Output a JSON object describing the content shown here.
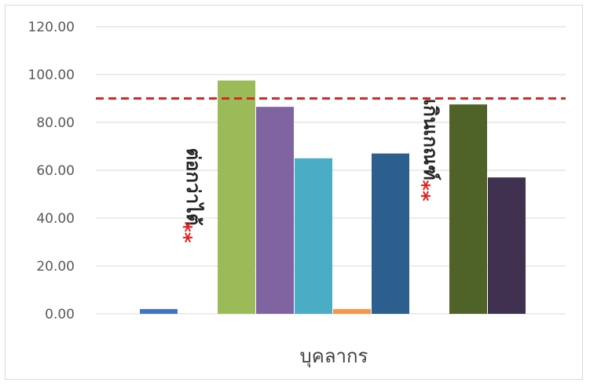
{
  "chart_data": {
    "type": "bar",
    "title": "",
    "xlabel": "บุคลากร",
    "ylabel": "",
    "ylim": [
      0,
      120
    ],
    "yticks": [
      "0.00",
      "20.00",
      "40.00",
      "60.00",
      "80.00",
      "100.00",
      "120.00"
    ],
    "grid": true,
    "legend": "none",
    "reference_line": {
      "value": 90,
      "style": "dashed",
      "color": "#d62728"
    },
    "groups": [
      {
        "bars": [
          {
            "value": 2,
            "color": "#4472c4"
          }
        ],
        "annotation": {
          "text": "ต่อกว่าไต้",
          "stars": "**"
        }
      },
      {
        "bars": [
          {
            "value": 97.5,
            "color": "#9bbb59"
          },
          {
            "value": 86.5,
            "color": "#8064a2"
          },
          {
            "value": 65,
            "color": "#4bacc6"
          },
          {
            "value": 2,
            "color": "#f79646"
          },
          {
            "value": 67,
            "color": "#2c5f8e"
          }
        ]
      },
      {
        "bars": [
          {
            "value": 87.5,
            "color": "#4f6228"
          },
          {
            "value": 57,
            "color": "#403151"
          }
        ],
        "annotation": {
          "text": "เกินเกณฑ์",
          "stars": "**"
        }
      }
    ]
  }
}
